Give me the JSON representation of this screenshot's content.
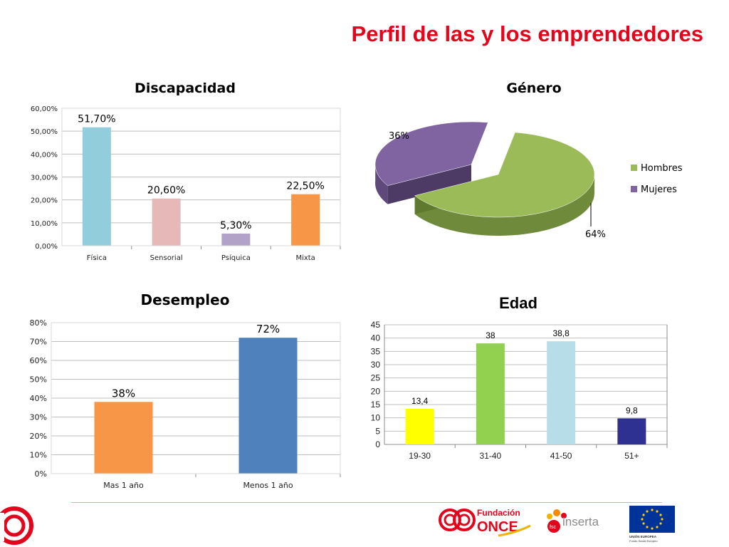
{
  "page": {
    "title": "Perfil de las y los emprendedores"
  },
  "footer": {
    "logo_once": {
      "line1": "Fundación",
      "line2": "ONCE"
    },
    "logo_inserta": {
      "small": "fsc",
      "text": "inserta"
    },
    "logo_eu": {
      "line1": "UNIÓN EUROPEA",
      "line2": "Fondo Social Europeo"
    }
  },
  "chart_data": [
    {
      "type": "bar",
      "title": "Discapacidad",
      "categories": [
        "Física",
        "Sensorial",
        "Psíquica",
        "Mixta"
      ],
      "values": [
        51.7,
        20.6,
        5.3,
        22.5
      ],
      "data_labels": [
        "51,70%",
        "20,60%",
        "5,30%",
        "22,50%"
      ],
      "yticks": [
        "0,00%",
        "10,00%",
        "20,00%",
        "30,00%",
        "40,00%",
        "50,00%",
        "60,00%"
      ],
      "ylim": [
        0,
        60
      ],
      "grid": true,
      "colors": [
        "#92cddc",
        "#e6b9b8",
        "#b3a2c7",
        "#f79646"
      ]
    },
    {
      "type": "pie",
      "title": "Género",
      "labels": [
        "Hombres",
        "Mujeres"
      ],
      "values": [
        64,
        36
      ],
      "data_labels": [
        "64%",
        "36%"
      ],
      "legend": "right",
      "colors": [
        "#9bbb59",
        "#8064a2"
      ]
    },
    {
      "type": "bar",
      "title": "Desempleo",
      "categories": [
        "Mas 1 año",
        "Menos 1 año"
      ],
      "values": [
        38,
        72
      ],
      "data_labels": [
        "38%",
        "72%"
      ],
      "yticks": [
        "0%",
        "10%",
        "20%",
        "30%",
        "40%",
        "50%",
        "60%",
        "70%",
        "80%"
      ],
      "ylim": [
        0,
        80
      ],
      "grid": true,
      "colors": [
        "#f79646",
        "#4f81bd"
      ]
    },
    {
      "type": "bar",
      "title": "Edad",
      "categories": [
        "19-30",
        "31-40",
        "41-50",
        "51+"
      ],
      "values": [
        13.4,
        38,
        38.8,
        9.8
      ],
      "data_labels": [
        "13,4",
        "38",
        "38,8",
        "9,8"
      ],
      "yticks": [
        "0",
        "5",
        "10",
        "15",
        "20",
        "25",
        "30",
        "35",
        "40",
        "45"
      ],
      "ylim": [
        0,
        45
      ],
      "grid": true,
      "colors": [
        "#ffff00",
        "#92d050",
        "#b7dee8",
        "#2e3192"
      ]
    }
  ]
}
